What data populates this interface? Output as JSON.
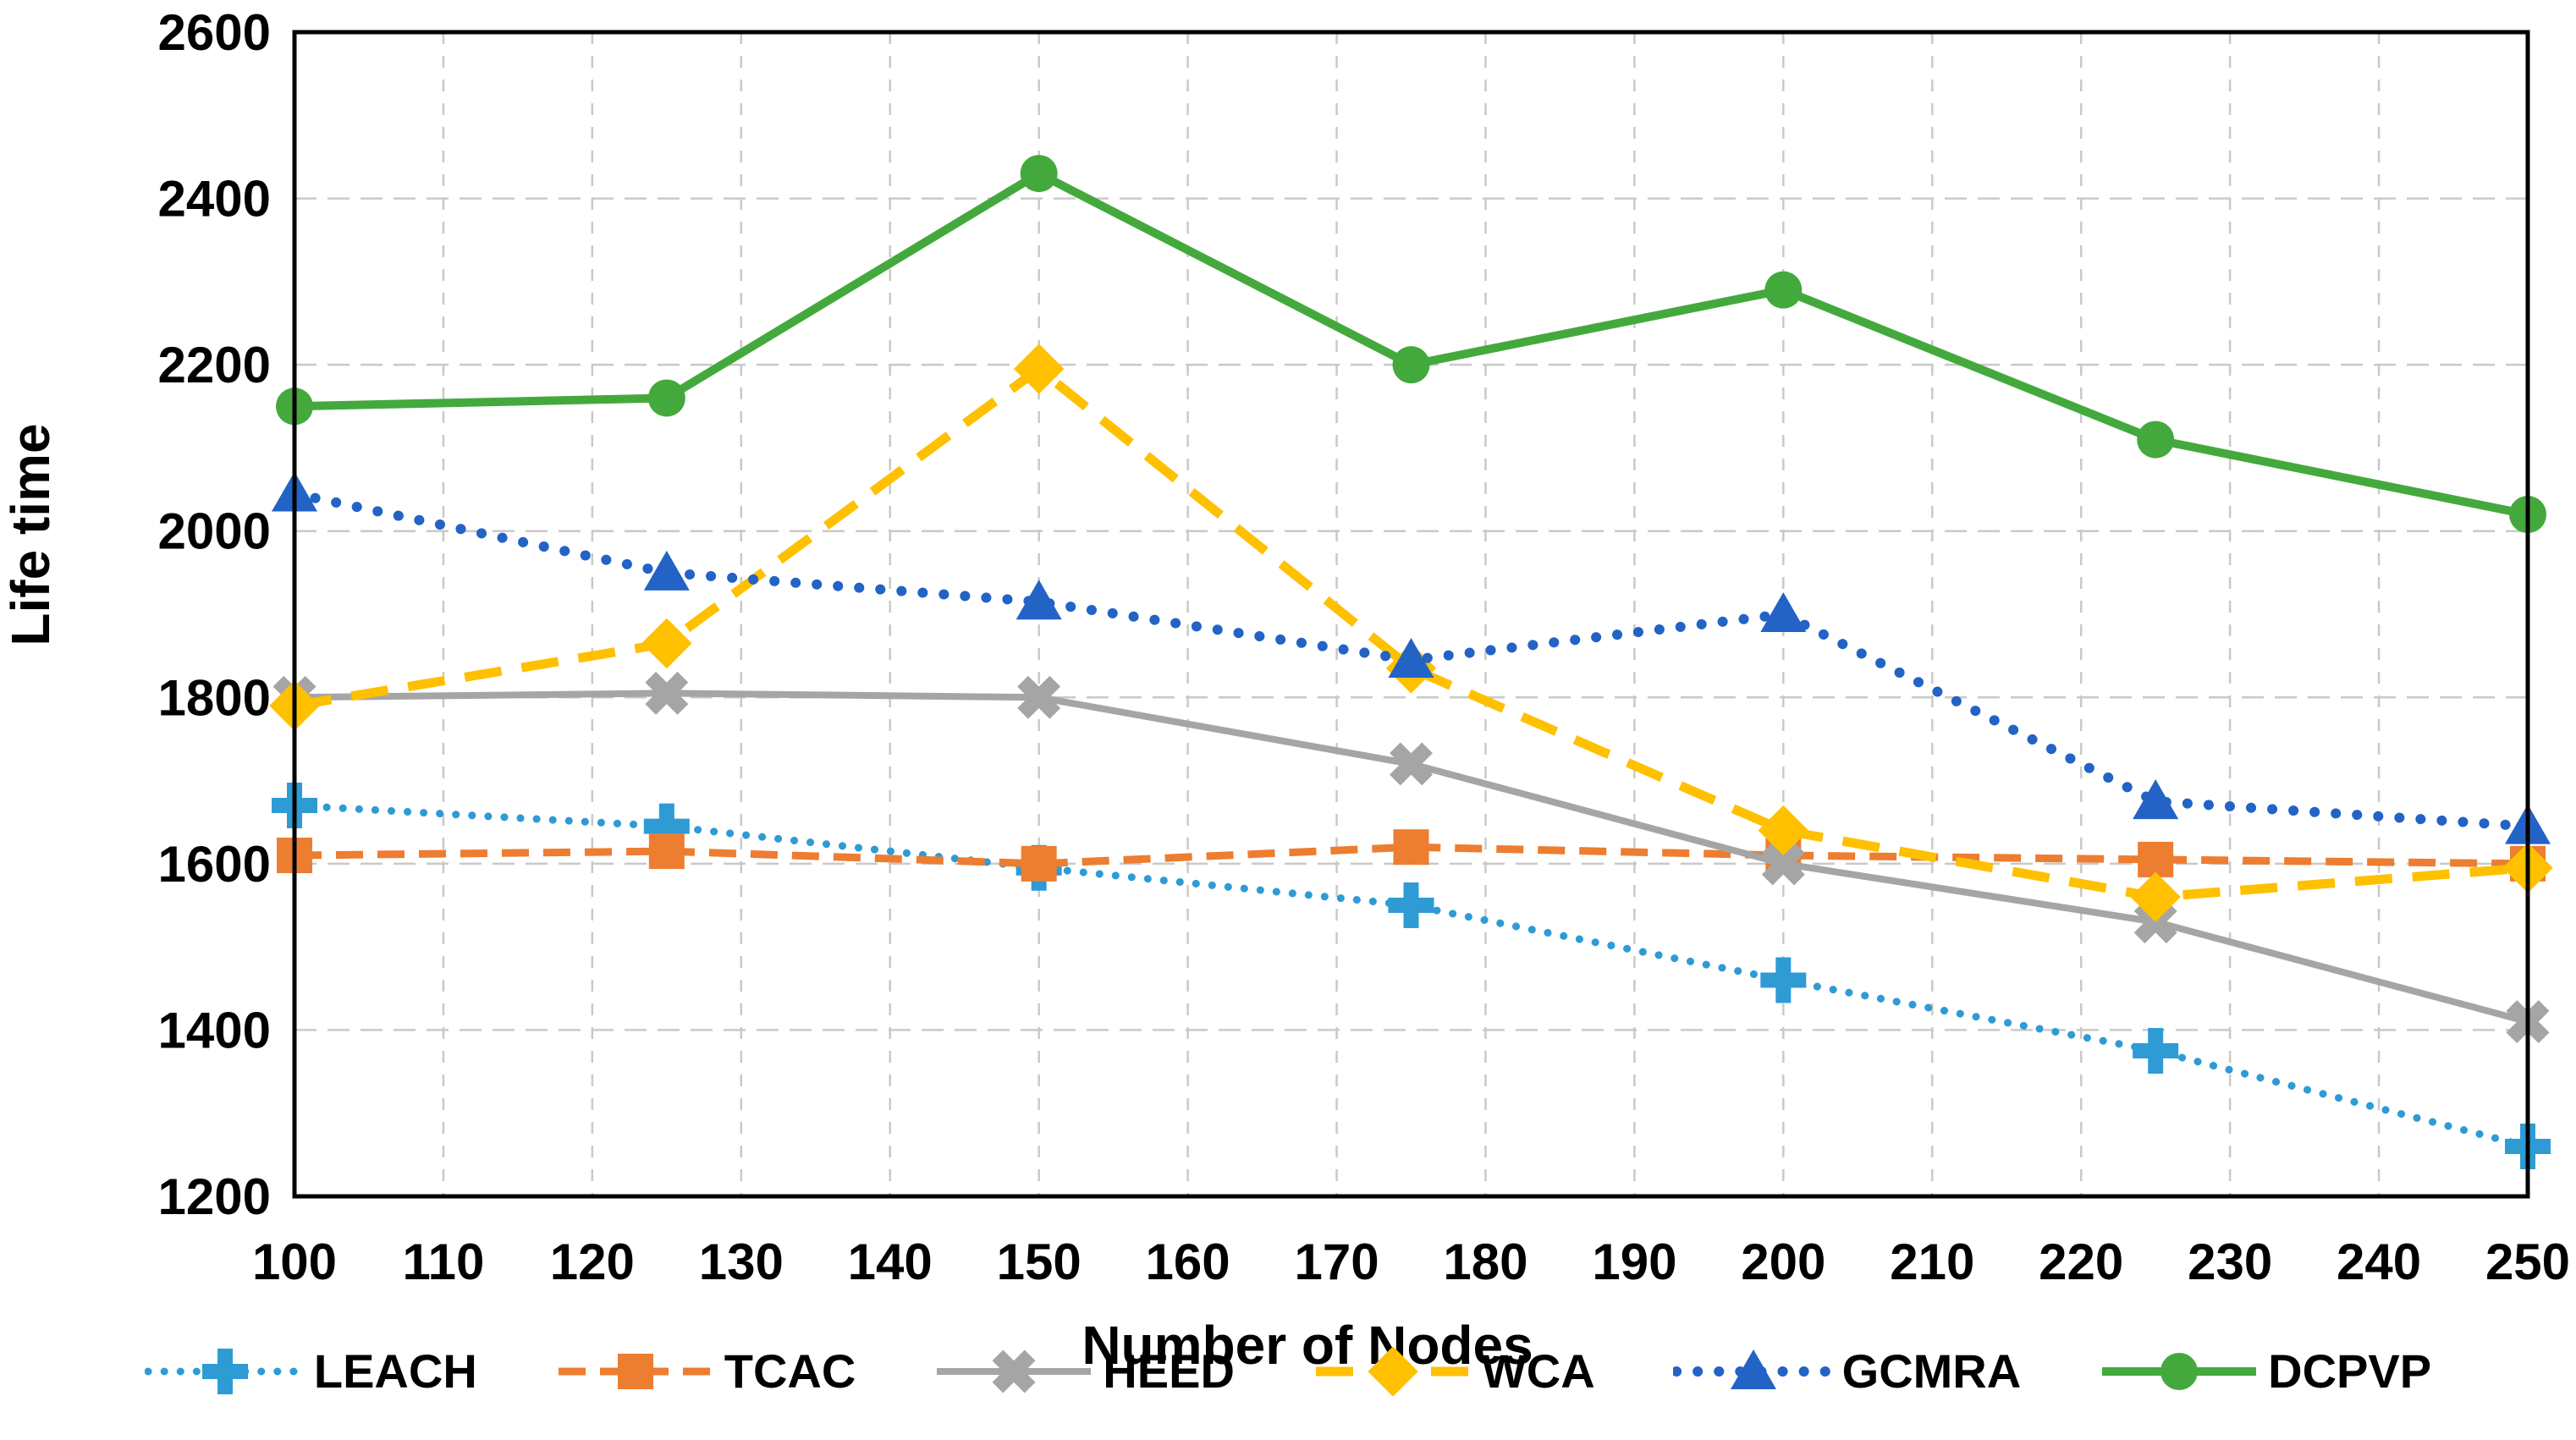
{
  "figure": {
    "description": "Line chart comparing network life time of six clustering protocols versus number of nodes",
    "background": "#FFFFFF"
  },
  "chart_data": {
    "type": "line",
    "title": "",
    "xlabel": "Number of Nodes",
    "ylabel": "Life time",
    "xlim": [
      100,
      250
    ],
    "ylim": [
      1200,
      2600
    ],
    "x_ticks": [
      100,
      110,
      120,
      130,
      140,
      150,
      160,
      170,
      180,
      190,
      200,
      210,
      220,
      230,
      240,
      250
    ],
    "y_ticks": [
      1200,
      1400,
      1600,
      1800,
      2000,
      2200,
      2400,
      2600
    ],
    "grid": true,
    "grid_color": "#C9C9C9",
    "axis_color": "#000000",
    "legend_position": "bottom",
    "x": [
      100,
      125,
      150,
      175,
      200,
      225,
      250
    ],
    "series": [
      {
        "name": "LEACH",
        "color": "#2E9BD5",
        "line": "dotted",
        "marker": "plus",
        "values": [
          1670,
          1645,
          1595,
          1550,
          1460,
          1375,
          1260
        ]
      },
      {
        "name": "TCAC",
        "color": "#ED7D31",
        "line": "dashed",
        "marker": "square",
        "values": [
          1610,
          1615,
          1600,
          1620,
          1610,
          1605,
          1600
        ]
      },
      {
        "name": "HEED",
        "color": "#A5A5A5",
        "line": "solid",
        "marker": "x",
        "values": [
          1800,
          1805,
          1800,
          1720,
          1600,
          1530,
          1410
        ]
      },
      {
        "name": "WCA",
        "color": "#FFC000",
        "line": "dashed",
        "marker": "diamond",
        "values": [
          1790,
          1865,
          2195,
          1835,
          1640,
          1560,
          1595
        ]
      },
      {
        "name": "GCMRA",
        "color": "#2263C5",
        "line": "dotted",
        "marker": "triangle",
        "values": [
          2045,
          1950,
          1915,
          1845,
          1900,
          1675,
          1645
        ]
      },
      {
        "name": "DCPVP",
        "color": "#44A93D",
        "line": "solid",
        "marker": "circle",
        "values": [
          2150,
          2160,
          2430,
          2200,
          2290,
          2110,
          2020
        ]
      }
    ]
  }
}
